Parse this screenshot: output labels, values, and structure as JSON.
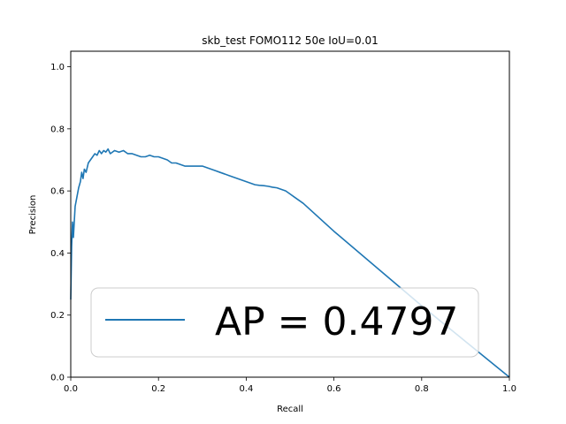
{
  "chart_data": {
    "type": "line",
    "title": "skb_test FOMO112 50e IoU=0.01",
    "xlabel": "Recall",
    "ylabel": "Precision",
    "xlim": [
      0.0,
      1.0
    ],
    "ylim": [
      0.0,
      1.05
    ],
    "xticks": [
      "0.0",
      "0.2",
      "0.4",
      "0.6",
      "0.8",
      "1.0"
    ],
    "yticks": [
      "0.0",
      "0.2",
      "0.4",
      "0.6",
      "0.8",
      "1.0"
    ],
    "grid": false,
    "legend_position": "lower center",
    "series": [
      {
        "name": "AP = 0.4797",
        "color": "#1f77b4",
        "x": [
          0.0,
          0.002,
          0.004,
          0.006,
          0.008,
          0.01,
          0.014,
          0.018,
          0.022,
          0.025,
          0.028,
          0.031,
          0.035,
          0.04,
          0.045,
          0.05,
          0.055,
          0.06,
          0.065,
          0.07,
          0.075,
          0.08,
          0.085,
          0.09,
          0.1,
          0.11,
          0.12,
          0.13,
          0.14,
          0.15,
          0.16,
          0.17,
          0.18,
          0.19,
          0.2,
          0.21,
          0.22,
          0.23,
          0.24,
          0.25,
          0.26,
          0.27,
          0.28,
          0.29,
          0.3,
          0.31,
          0.32,
          0.33,
          0.34,
          0.35,
          0.36,
          0.37,
          0.38,
          0.39,
          0.4,
          0.41,
          0.42,
          0.43,
          0.44,
          0.45,
          0.46,
          0.47,
          0.48,
          0.49,
          0.5,
          0.51,
          0.52,
          0.53,
          0.6,
          0.7,
          0.8,
          0.9,
          1.0
        ],
        "y": [
          0.25,
          0.42,
          0.5,
          0.45,
          0.5,
          0.55,
          0.58,
          0.61,
          0.63,
          0.66,
          0.64,
          0.67,
          0.66,
          0.69,
          0.7,
          0.71,
          0.72,
          0.715,
          0.73,
          0.72,
          0.73,
          0.725,
          0.735,
          0.72,
          0.73,
          0.725,
          0.73,
          0.72,
          0.72,
          0.715,
          0.71,
          0.71,
          0.715,
          0.71,
          0.71,
          0.705,
          0.7,
          0.69,
          0.69,
          0.685,
          0.68,
          0.68,
          0.68,
          0.68,
          0.68,
          0.675,
          0.67,
          0.665,
          0.66,
          0.655,
          0.65,
          0.645,
          0.64,
          0.635,
          0.63,
          0.625,
          0.62,
          0.618,
          0.617,
          0.615,
          0.612,
          0.61,
          0.605,
          0.6,
          0.59,
          0.58,
          0.57,
          0.56,
          0.47,
          0.35,
          0.23,
          0.115,
          0.0
        ]
      }
    ]
  }
}
